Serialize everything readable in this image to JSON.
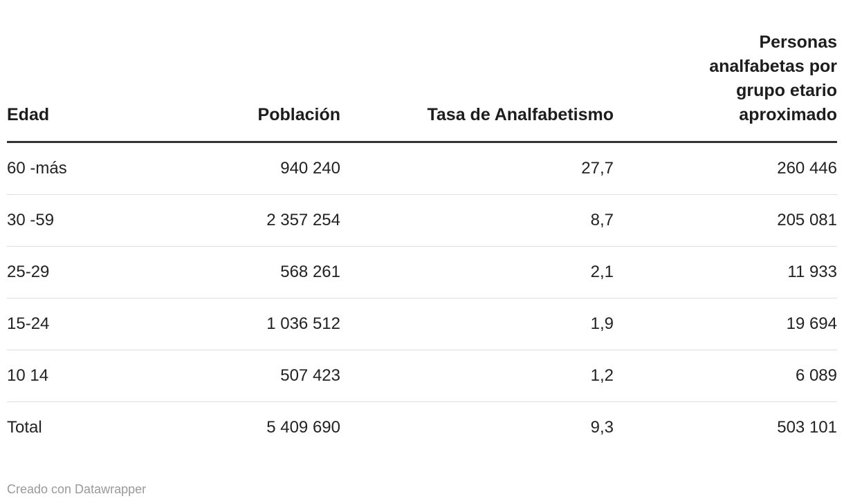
{
  "chart_data": {
    "type": "table",
    "columns": [
      "Edad",
      "Población",
      "Tasa de Analfabetismo",
      "Personas analfabetas por grupo etario aproximado"
    ],
    "rows_display": [
      [
        "60 -más",
        "940 240",
        "27,7",
        "260 446"
      ],
      [
        "30 -59",
        "2 357 254",
        "8,7",
        "205 081"
      ],
      [
        "25-29",
        "568 261",
        "2,1",
        "11 933"
      ],
      [
        "15-24",
        "1 036 512",
        "1,9",
        "19 694"
      ],
      [
        "10 14",
        "507 423",
        "1,2",
        "6 089"
      ],
      [
        "Total",
        "5 409 690",
        "9,3",
        "503 101"
      ]
    ],
    "rows_numeric": [
      {
        "edad": "60 -más",
        "poblacion": 940240,
        "tasa_analfabetismo": 27.7,
        "personas_analfabetas": 260446
      },
      {
        "edad": "30 -59",
        "poblacion": 2357254,
        "tasa_analfabetismo": 8.7,
        "personas_analfabetas": 205081
      },
      {
        "edad": "25-29",
        "poblacion": 568261,
        "tasa_analfabetismo": 2.1,
        "personas_analfabetas": 11933
      },
      {
        "edad": "15-24",
        "poblacion": 1036512,
        "tasa_analfabetismo": 1.9,
        "personas_analfabetas": 19694
      },
      {
        "edad": "10 14",
        "poblacion": 507423,
        "tasa_analfabetismo": 1.2,
        "personas_analfabetas": 6089
      },
      {
        "edad": "Total",
        "poblacion": 5409690,
        "tasa_analfabetismo": 9.3,
        "personas_analfabetas": 503101
      }
    ],
    "layout": {
      "number_format": "space thousands separator, comma decimals",
      "numeric_columns_align": "right",
      "header_rule_color": "#333333",
      "row_divider_color": "#dddddd"
    }
  },
  "footer": {
    "credit": "Creado con Datawrapper",
    "credit_color": "#999999"
  }
}
